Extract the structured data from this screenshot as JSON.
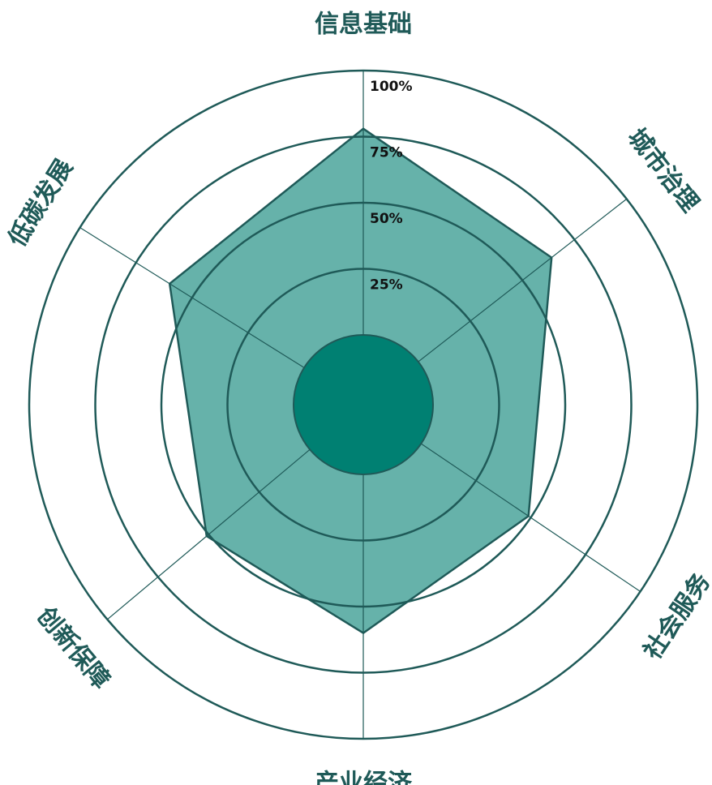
{
  "chart_data": {
    "type": "radar",
    "categories": [
      "信息基础",
      "城市治理",
      "社会服务",
      "产业经济",
      "创新保障",
      "低碳发展"
    ],
    "values": [
      78,
      64,
      49,
      60,
      51,
      60
    ],
    "color": "#66b2aa",
    "rlim": [
      0,
      100
    ],
    "rticks": [
      {
        "value": 25,
        "label": "25%"
      },
      {
        "value": 50,
        "label": "50%"
      },
      {
        "value": 75,
        "label": "75%"
      },
      {
        "value": 100,
        "label": "100%"
      }
    ],
    "grid": true
  }
}
